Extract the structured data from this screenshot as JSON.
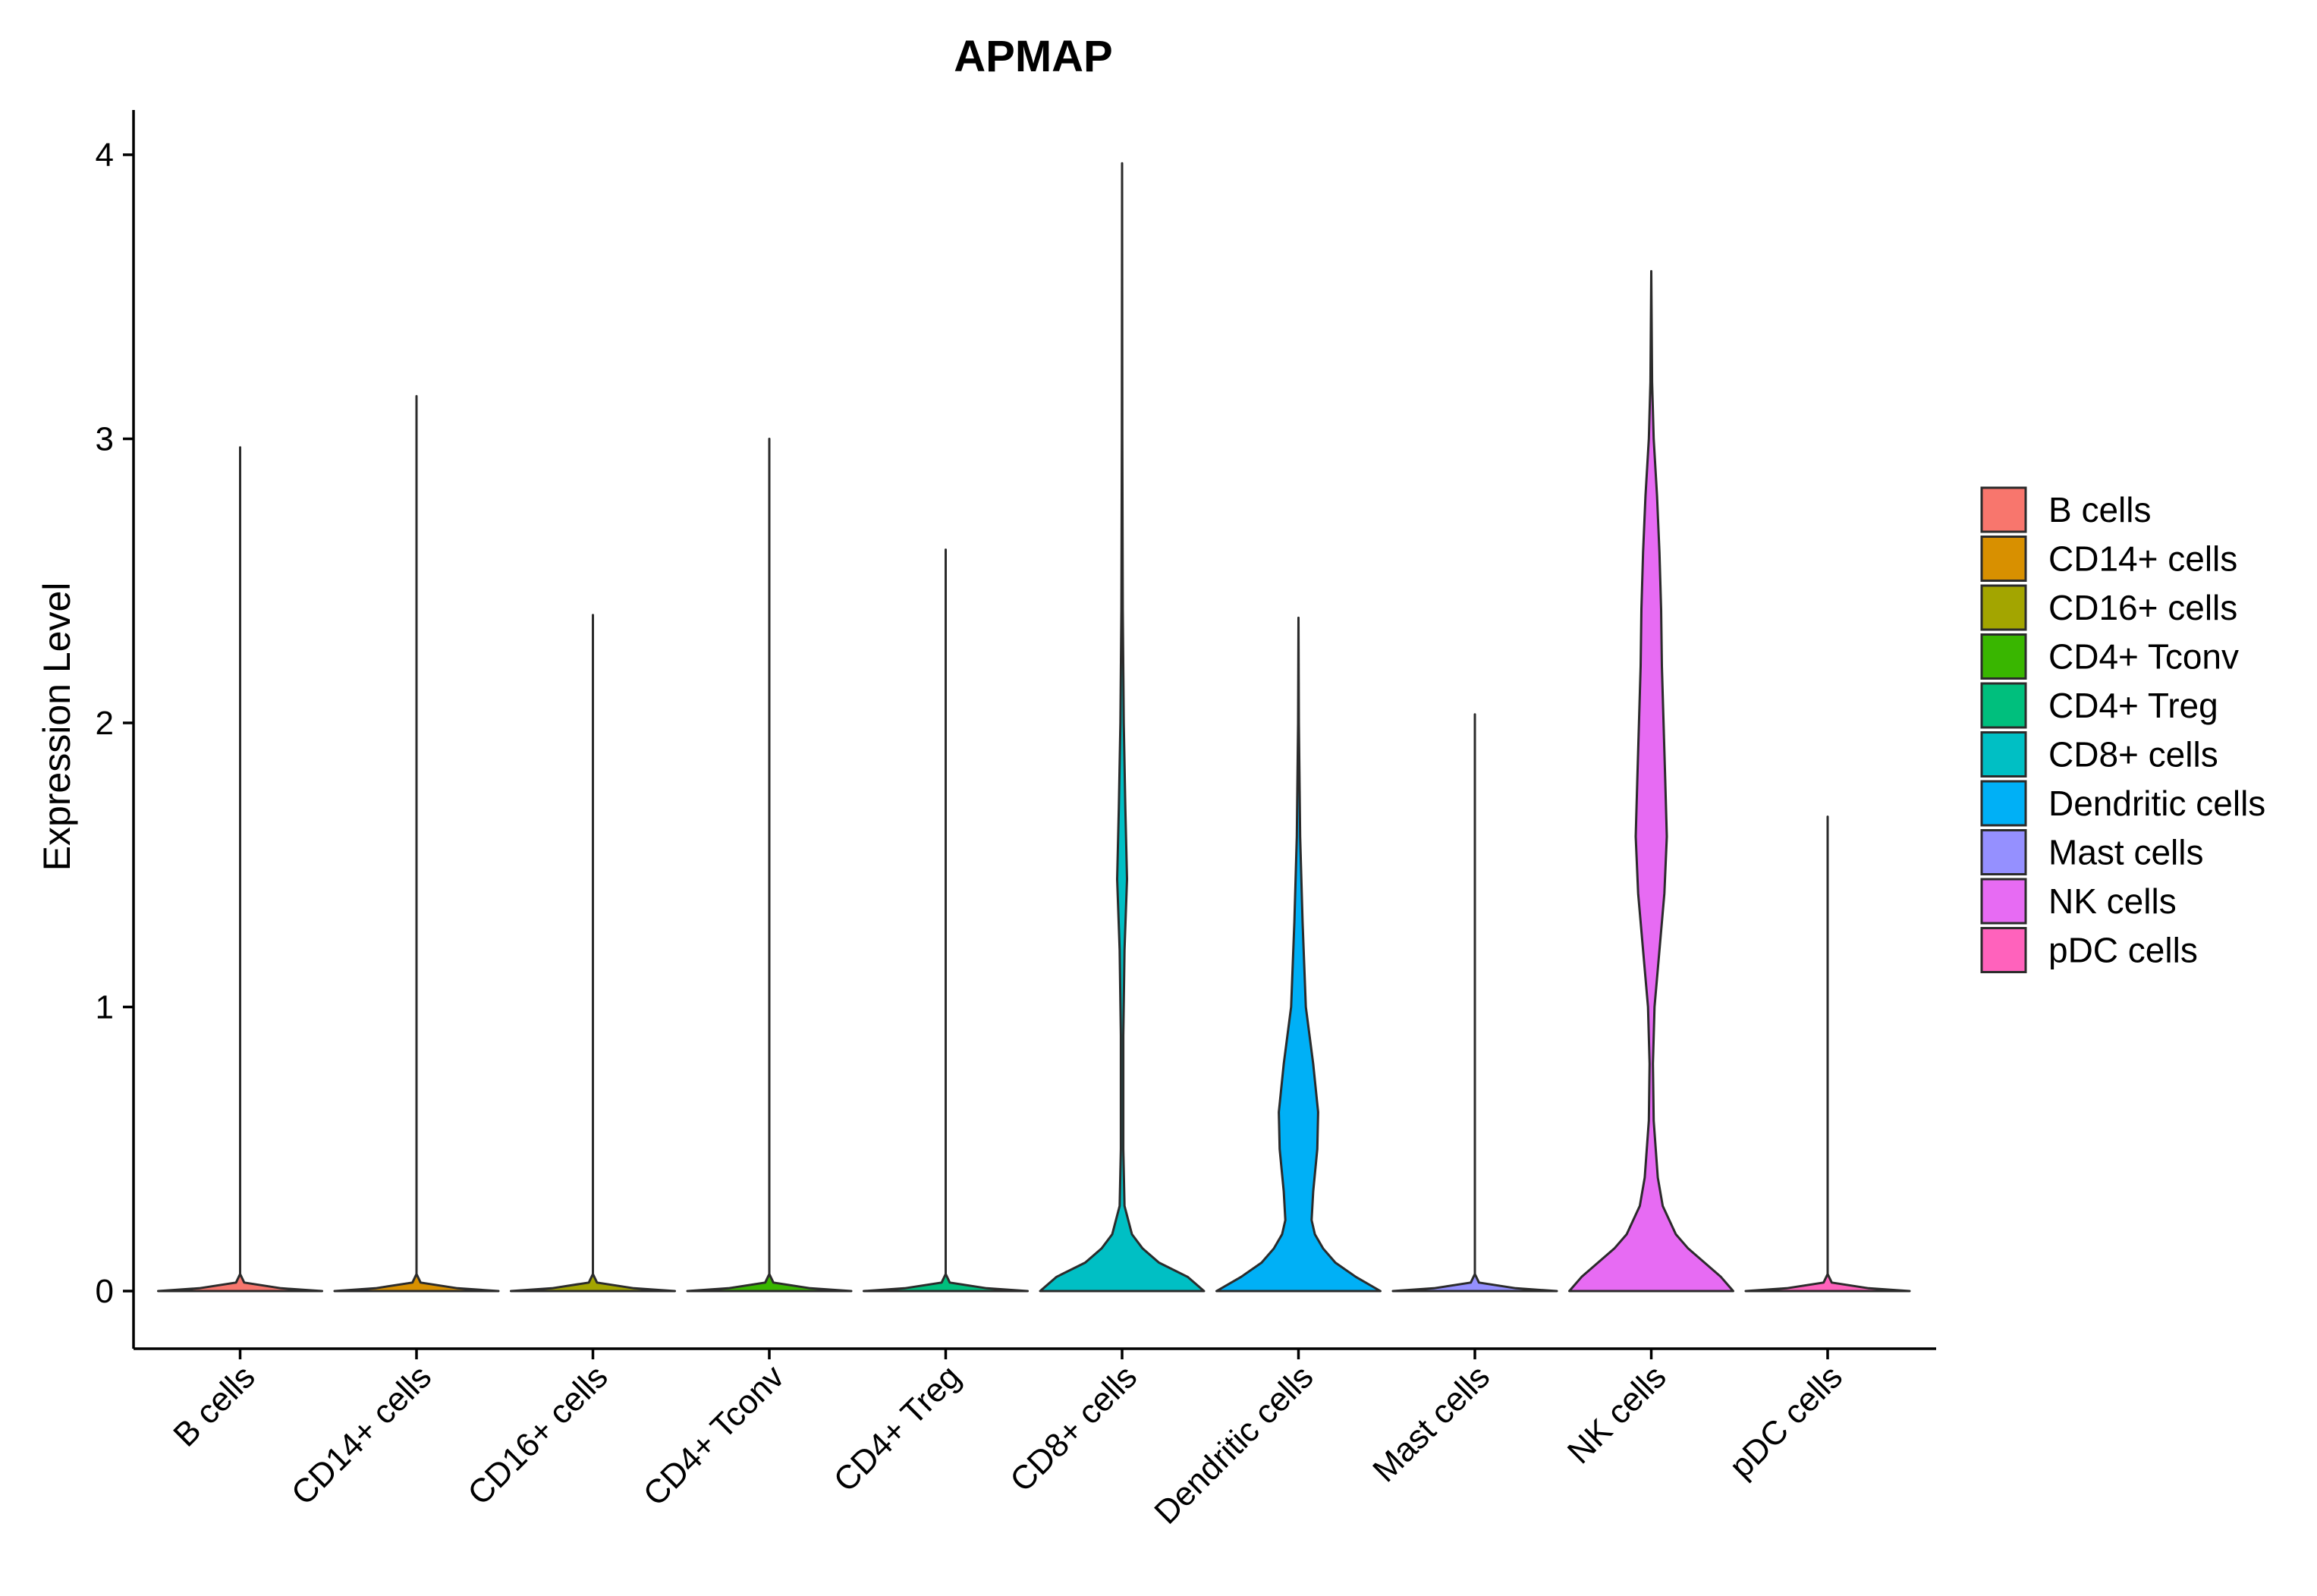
{
  "chart_data": {
    "type": "violin",
    "title": "APMAP",
    "xlabel": "",
    "ylabel": "Expression Level",
    "ylim": [
      -0.2,
      4.18
    ],
    "yticks": [
      0,
      1,
      2,
      3,
      4
    ],
    "grid": false,
    "legend_position": "right",
    "categories": [
      "B cells",
      "CD14+ cells",
      "CD16+ cells",
      "CD4+ Tconv",
      "CD4+ Treg",
      "CD8+ cells",
      "Dendritic cells",
      "Mast cells",
      "NK cells",
      "pDC cells"
    ],
    "series": [
      {
        "name": "B cells",
        "color": "#F8766D",
        "max": 2.97,
        "density": [
          [
            0,
            1.0
          ],
          [
            0.01,
            0.5
          ],
          [
            0.03,
            0.05
          ],
          [
            0.06,
            0.0
          ],
          [
            2.97,
            0.0
          ]
        ]
      },
      {
        "name": "CD14+ cells",
        "color": "#D89000",
        "max": 3.15,
        "density": [
          [
            0,
            1.0
          ],
          [
            0.01,
            0.5
          ],
          [
            0.03,
            0.05
          ],
          [
            0.06,
            0.0
          ],
          [
            3.15,
            0.0
          ]
        ]
      },
      {
        "name": "CD16+ cells",
        "color": "#A3A500",
        "max": 2.38,
        "density": [
          [
            0,
            1.0
          ],
          [
            0.01,
            0.5
          ],
          [
            0.03,
            0.05
          ],
          [
            0.06,
            0.0
          ],
          [
            2.38,
            0.0
          ]
        ]
      },
      {
        "name": "CD4+ Tconv",
        "color": "#39B600",
        "max": 3.0,
        "density": [
          [
            0,
            1.0
          ],
          [
            0.01,
            0.5
          ],
          [
            0.03,
            0.05
          ],
          [
            0.06,
            0.0
          ],
          [
            3.0,
            0.0
          ]
        ]
      },
      {
        "name": "CD4+ Treg",
        "color": "#00BF7D",
        "max": 2.61,
        "density": [
          [
            0,
            1.0
          ],
          [
            0.01,
            0.5
          ],
          [
            0.03,
            0.05
          ],
          [
            0.06,
            0.0
          ],
          [
            2.61,
            0.0
          ]
        ]
      },
      {
        "name": "CD8+ cells",
        "color": "#00BFC4",
        "max": 3.97,
        "density": [
          [
            0,
            1.0
          ],
          [
            0.05,
            0.8
          ],
          [
            0.1,
            0.45
          ],
          [
            0.15,
            0.25
          ],
          [
            0.2,
            0.12
          ],
          [
            0.3,
            0.03
          ],
          [
            0.5,
            0.015
          ],
          [
            0.9,
            0.015
          ],
          [
            1.2,
            0.03
          ],
          [
            1.45,
            0.06
          ],
          [
            1.7,
            0.04
          ],
          [
            2.0,
            0.02
          ],
          [
            2.4,
            0.008
          ],
          [
            3.0,
            0.003
          ],
          [
            3.97,
            0.0
          ]
        ]
      },
      {
        "name": "Dendritic cells",
        "color": "#00B0F6",
        "max": 2.37,
        "density": [
          [
            0,
            1.0
          ],
          [
            0.05,
            0.7
          ],
          [
            0.1,
            0.45
          ],
          [
            0.15,
            0.3
          ],
          [
            0.2,
            0.2
          ],
          [
            0.25,
            0.16
          ],
          [
            0.35,
            0.18
          ],
          [
            0.5,
            0.23
          ],
          [
            0.63,
            0.24
          ],
          [
            0.8,
            0.18
          ],
          [
            1.0,
            0.09
          ],
          [
            1.3,
            0.05
          ],
          [
            1.6,
            0.02
          ],
          [
            2.0,
            0.005
          ],
          [
            2.37,
            0.0
          ]
        ]
      },
      {
        "name": "Mast cells",
        "color": "#9590FF",
        "max": 2.03,
        "density": [
          [
            0,
            1.0
          ],
          [
            0.01,
            0.5
          ],
          [
            0.03,
            0.05
          ],
          [
            0.06,
            0.0
          ],
          [
            2.03,
            0.0
          ]
        ]
      },
      {
        "name": "NK cells",
        "color": "#E76BF3",
        "max": 3.59,
        "density": [
          [
            0,
            1.0
          ],
          [
            0.05,
            0.85
          ],
          [
            0.1,
            0.65
          ],
          [
            0.15,
            0.45
          ],
          [
            0.2,
            0.3
          ],
          [
            0.3,
            0.14
          ],
          [
            0.4,
            0.08
          ],
          [
            0.6,
            0.03
          ],
          [
            0.8,
            0.02
          ],
          [
            1.0,
            0.04
          ],
          [
            1.2,
            0.1
          ],
          [
            1.4,
            0.16
          ],
          [
            1.6,
            0.19
          ],
          [
            1.8,
            0.17
          ],
          [
            2.0,
            0.15
          ],
          [
            2.2,
            0.13
          ],
          [
            2.4,
            0.12
          ],
          [
            2.6,
            0.1
          ],
          [
            2.8,
            0.07
          ],
          [
            3.0,
            0.03
          ],
          [
            3.2,
            0.01
          ],
          [
            3.59,
            0.0
          ]
        ]
      },
      {
        "name": "pDC cells",
        "color": "#FF62BC",
        "max": 1.67,
        "density": [
          [
            0,
            1.0
          ],
          [
            0.01,
            0.5
          ],
          [
            0.03,
            0.05
          ],
          [
            0.06,
            0.0
          ],
          [
            1.67,
            0.0
          ]
        ]
      }
    ]
  }
}
